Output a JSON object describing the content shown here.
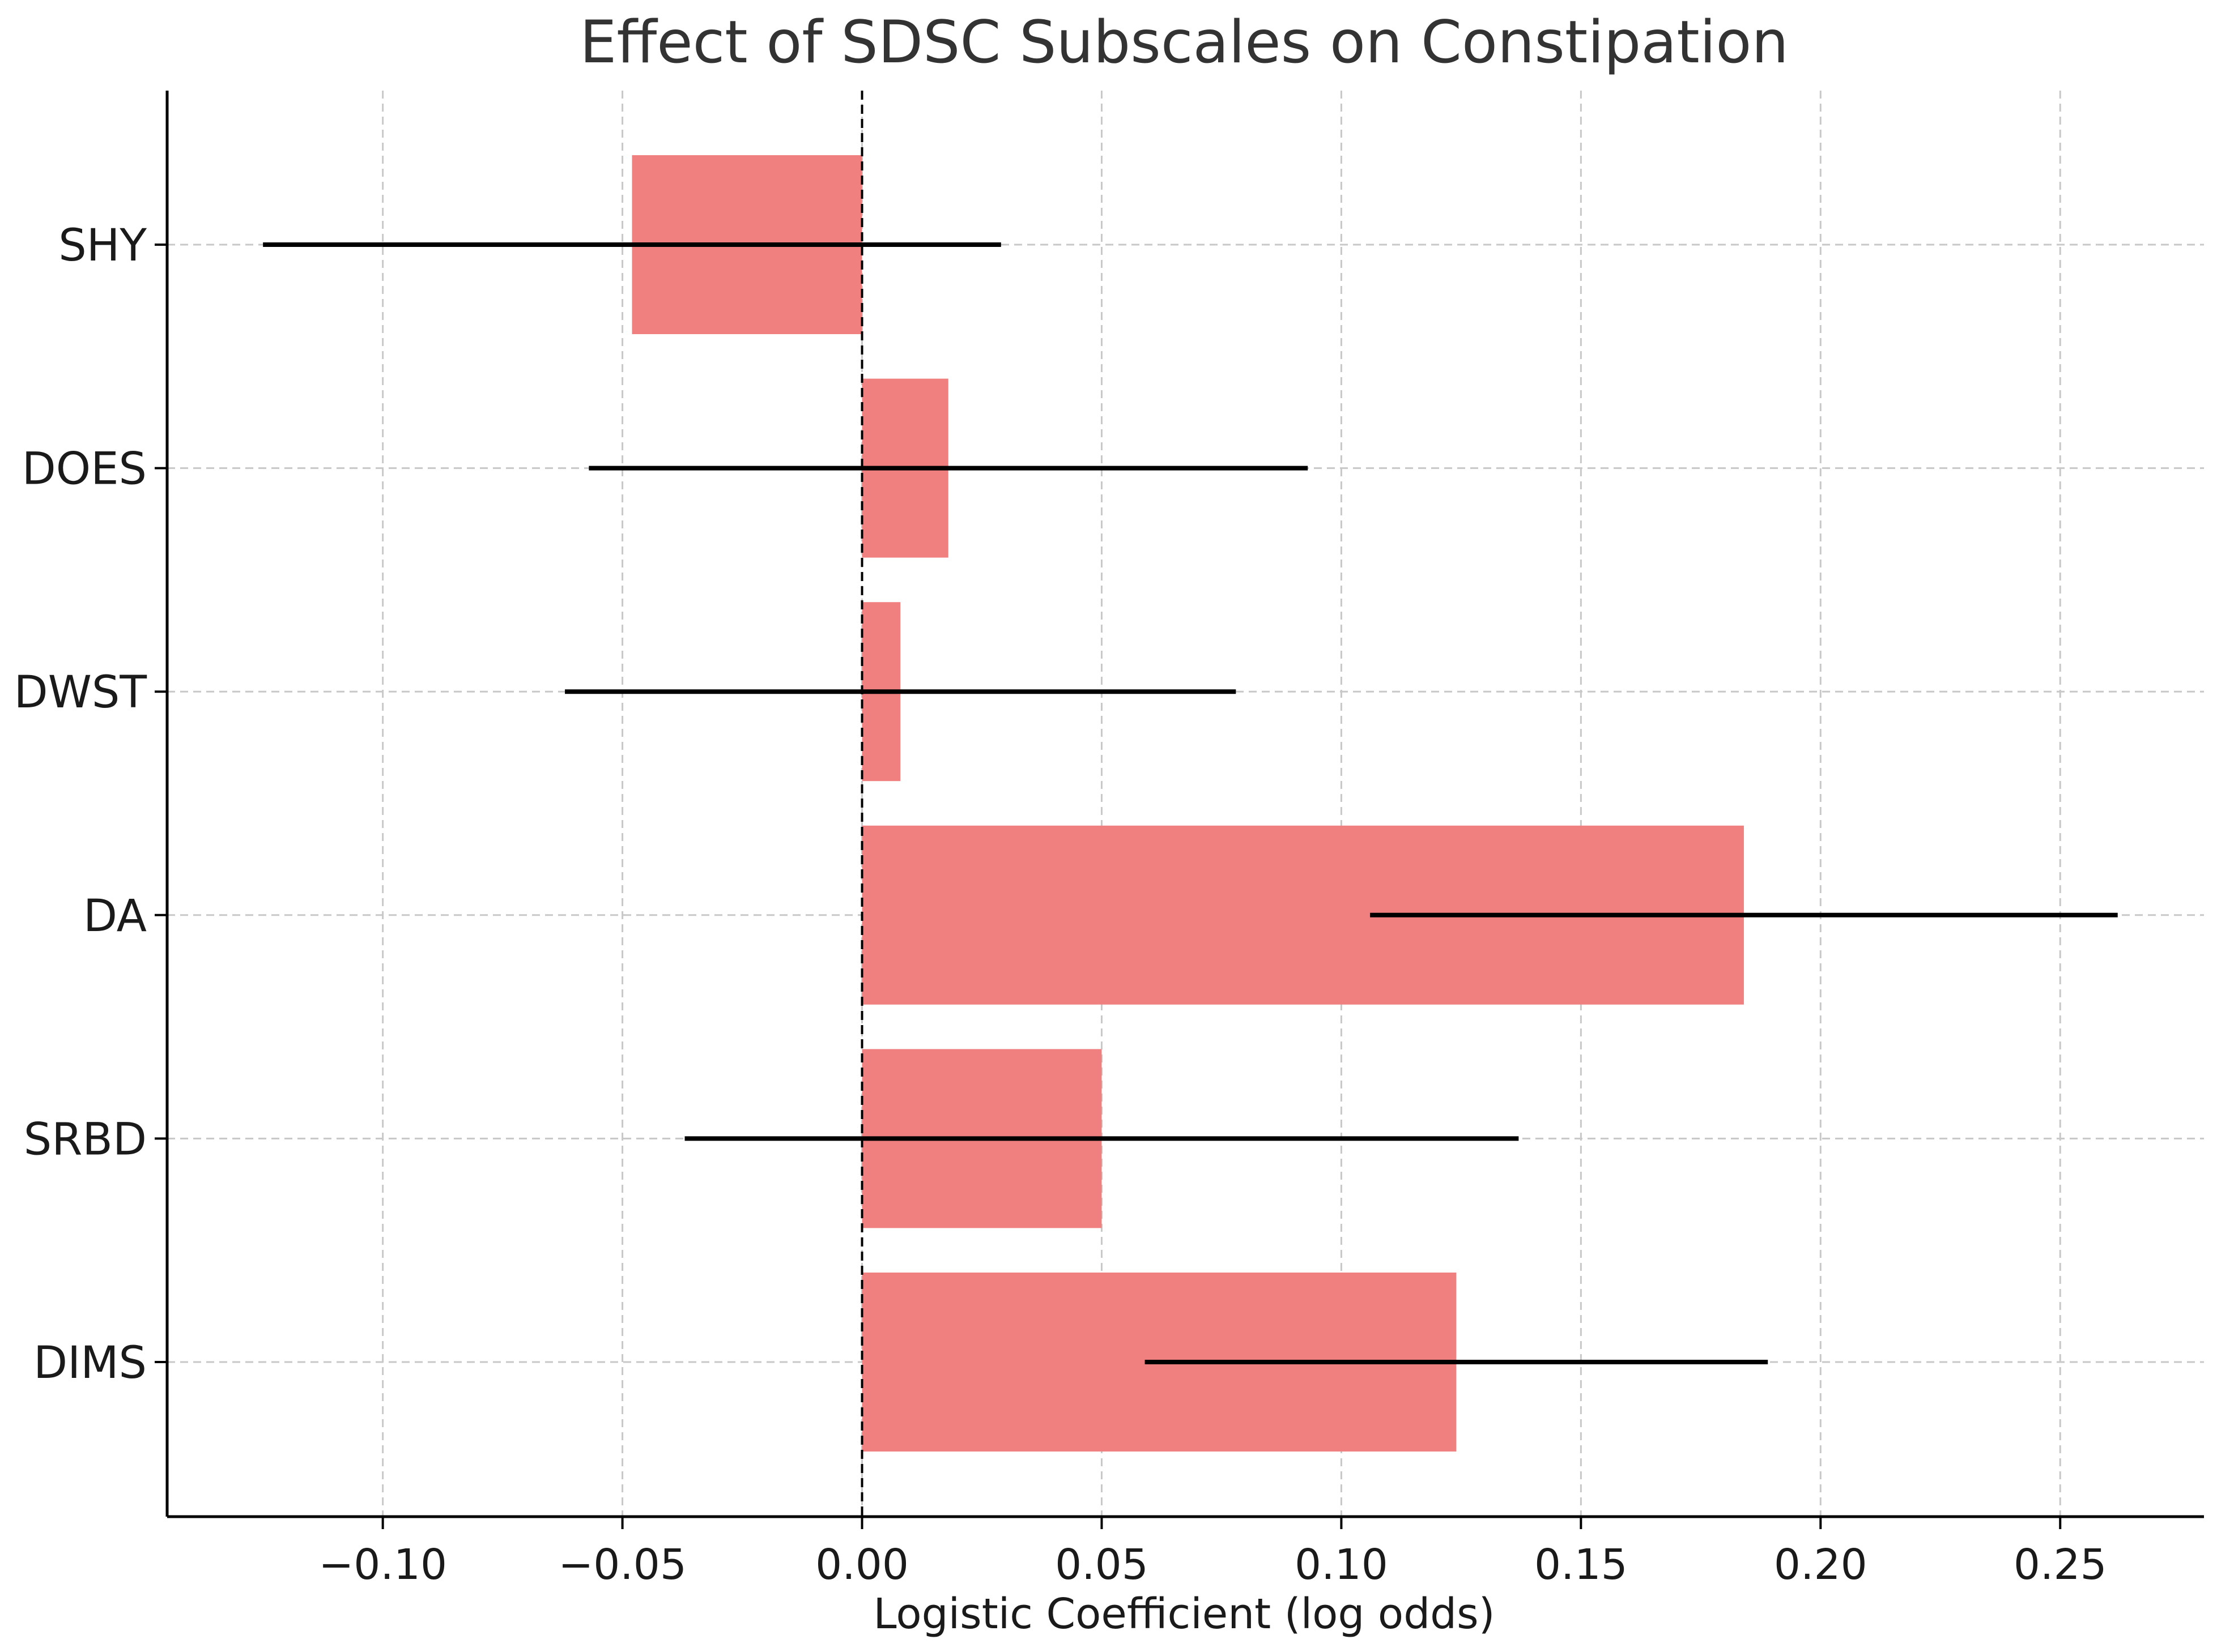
{
  "chart_data": {
    "type": "bar",
    "orientation": "horizontal",
    "title": "Effect of SDSC Subscales on Constipation",
    "xlabel": "Logistic Coefficient (log odds)",
    "ylabel": "",
    "xlim": [
      -0.145,
      0.28
    ],
    "xticks": [
      -0.1,
      -0.05,
      0.0,
      0.05,
      0.1,
      0.15,
      0.2,
      0.25
    ],
    "xtick_labels": [
      "−0.10",
      "−0.05",
      "0.00",
      "0.05",
      "0.10",
      "0.15",
      "0.20",
      "0.25"
    ],
    "grid": true,
    "reference_line": 0,
    "bar_color": "#f08080",
    "categories": [
      "SHY",
      "DOES",
      "DWST",
      "DA",
      "SRBD",
      "DIMS"
    ],
    "values": [
      -0.048,
      0.018,
      0.008,
      0.184,
      0.05,
      0.124
    ],
    "ci_lower": [
      -0.125,
      -0.057,
      -0.062,
      0.106,
      -0.037,
      0.059
    ],
    "ci_upper": [
      0.029,
      0.093,
      0.078,
      0.262,
      0.137,
      0.189
    ]
  }
}
